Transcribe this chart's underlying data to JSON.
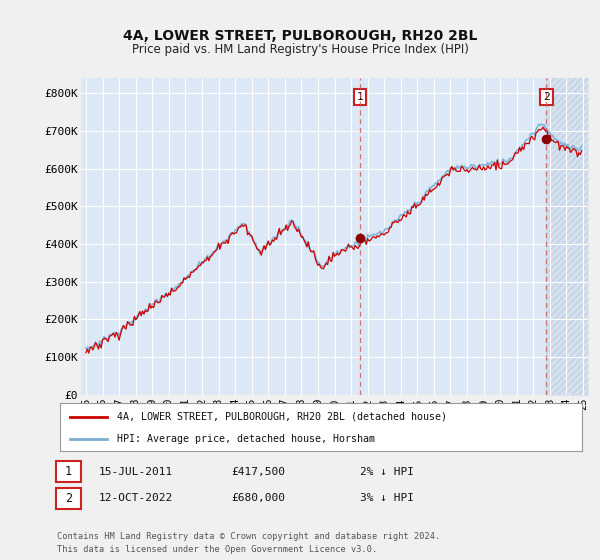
{
  "title": "4A, LOWER STREET, PULBOROUGH, RH20 2BL",
  "subtitle": "Price paid vs. HM Land Registry's House Price Index (HPI)",
  "background_color": "#f0f0f0",
  "plot_bg_color": "#dce8f5",
  "yticks": [
    0,
    100000,
    200000,
    300000,
    400000,
    500000,
    600000,
    700000,
    800000
  ],
  "ytick_labels": [
    "£0",
    "£100K",
    "£200K",
    "£300K",
    "£400K",
    "£500K",
    "£600K",
    "£700K",
    "£800K"
  ],
  "ylim": [
    0,
    840000
  ],
  "sale1_date": "15-JUL-2011",
  "sale1_price": 417500,
  "sale1_year": 2011.54,
  "sale2_date": "12-OCT-2022",
  "sale2_price": 680000,
  "sale2_year": 2022.79,
  "sale1_pct": "2% ↓ HPI",
  "sale2_pct": "3% ↓ HPI",
  "legend_line1": "4A, LOWER STREET, PULBOROUGH, RH20 2BL (detached house)",
  "legend_line2": "HPI: Average price, detached house, Horsham",
  "footer": "Contains HM Land Registry data © Crown copyright and database right 2024.\nThis data is licensed under the Open Government Licence v3.0.",
  "hpi_color": "#7ab0d4",
  "price_color": "#cc0000",
  "marker_color": "#8b0000",
  "vline_color": "#cc5555",
  "xstart": 1995,
  "xend": 2025
}
